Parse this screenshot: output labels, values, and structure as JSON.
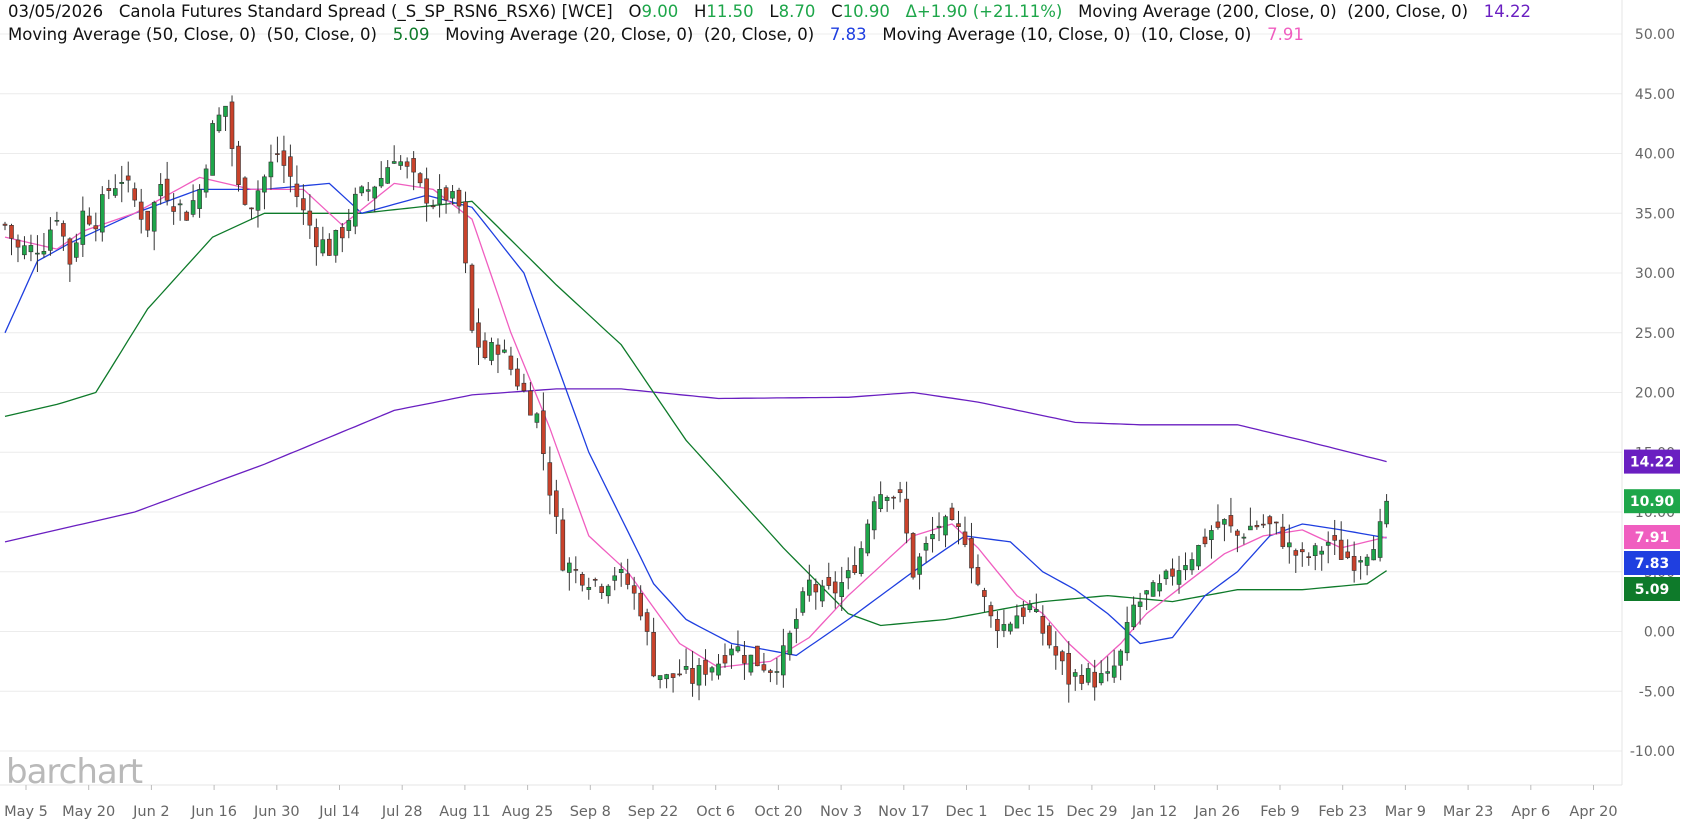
{
  "header": {
    "date": "03/05/2026",
    "symbol_title": "Canola Futures Standard Spread (_S_SP_RSN6_RSX6) [WCE]",
    "open_label": "O",
    "open": "9.00",
    "high_label": "H",
    "high": "11.50",
    "low_label": "L",
    "low": "8.70",
    "close_label": "C",
    "close": "10.90",
    "change": "Δ+1.90 (+21.11%)",
    "ma200_label": "Moving Average (200, Close, 0)  (200, Close, 0)",
    "ma200_value": "14.22",
    "ma50_label": "Moving Average (50, Close, 0)  (50, Close, 0)",
    "ma50_value": "5.09",
    "ma20_label": "Moving Average (20, Close, 0)  (20, Close, 0)",
    "ma20_value": "7.83",
    "ma10_label": "Moving Average (10, Close, 0)  (10, Close, 0)",
    "ma10_value": "7.91"
  },
  "watermark": "barchart",
  "colors": {
    "up": "#1ea64a",
    "down": "#c9422b",
    "wick": "#333333",
    "ma200": "#6a1fc1",
    "ma50": "#0e7a2a",
    "ma20": "#1f3fe0",
    "ma10": "#f05ec0",
    "grid": "#ececec",
    "label_text": "#666666",
    "header_up": "#1ea64a"
  },
  "chart_data": {
    "type": "candlestick",
    "ylim": [
      -10,
      50
    ],
    "yticks": [
      "50.00",
      "45.00",
      "40.00",
      "35.00",
      "30.00",
      "25.00",
      "20.00",
      "15.00",
      "10.00",
      "5.00",
      "0.00",
      "-5.00",
      "-10.00"
    ],
    "ytick_values": [
      50,
      45,
      40,
      35,
      30,
      25,
      20,
      15,
      10,
      5,
      0,
      -5,
      -10
    ],
    "xticks": [
      "May 5",
      "May 20",
      "Jun 2",
      "Jun 16",
      "Jun 30",
      "Jul 14",
      "Jul 28",
      "Aug 11",
      "Aug 25",
      "Sep 8",
      "Sep 22",
      "Oct 6",
      "Oct 20",
      "Nov 3",
      "Nov 17",
      "Dec 1",
      "Dec 15",
      "Dec 29",
      "Jan 12",
      "Jan 26",
      "Feb 9",
      "Feb 23",
      "Mar 9",
      "Mar 23",
      "Apr 6",
      "Apr 20"
    ],
    "last_bar_tick_index": 21.7,
    "price_tags": [
      {
        "name": "ma200",
        "value": 14.22,
        "text": "14.22"
      },
      {
        "name": "close",
        "value": 10.9,
        "text": "10.90"
      },
      {
        "name": "ma10",
        "value": 7.91,
        "text": "7.91"
      },
      {
        "name": "ma20",
        "value": 7.83,
        "text": "7.83"
      },
      {
        "name": "ma50",
        "value": 5.09,
        "text": "5.09"
      }
    ],
    "close_anchors": [
      [
        0,
        34
      ],
      [
        2,
        32
      ],
      [
        4,
        32
      ],
      [
        6,
        32.5
      ],
      [
        8,
        35
      ],
      [
        10,
        31
      ],
      [
        12,
        35
      ],
      [
        14,
        34.5
      ],
      [
        16,
        37
      ],
      [
        18,
        38
      ],
      [
        20,
        36
      ],
      [
        22,
        34
      ],
      [
        24,
        37.5
      ],
      [
        26,
        36
      ],
      [
        28,
        35
      ],
      [
        30,
        37
      ],
      [
        32,
        42
      ],
      [
        34,
        44
      ],
      [
        36,
        37
      ],
      [
        38,
        36
      ],
      [
        40,
        38
      ],
      [
        42,
        40
      ],
      [
        44,
        38
      ],
      [
        46,
        35
      ],
      [
        48,
        33
      ],
      [
        50,
        32
      ],
      [
        52,
        33.5
      ],
      [
        54,
        36
      ],
      [
        56,
        37
      ],
      [
        58,
        38
      ],
      [
        60,
        40
      ],
      [
        62,
        38.5
      ],
      [
        64,
        37
      ],
      [
        66,
        36
      ],
      [
        68,
        36.5
      ],
      [
        70,
        35.5
      ],
      [
        72,
        25
      ],
      [
        74,
        23
      ],
      [
        76,
        24
      ],
      [
        78,
        22
      ],
      [
        80,
        20
      ],
      [
        82,
        18
      ],
      [
        84,
        12
      ],
      [
        86,
        6
      ],
      [
        88,
        5
      ],
      [
        90,
        4.5
      ],
      [
        92,
        4
      ],
      [
        94,
        5
      ],
      [
        96,
        4
      ],
      [
        98,
        2
      ],
      [
        100,
        -3
      ],
      [
        102,
        -4
      ],
      [
        104,
        -3.5
      ],
      [
        106,
        -4
      ],
      [
        108,
        -3
      ],
      [
        110,
        -2.5
      ],
      [
        112,
        -1
      ],
      [
        114,
        -2
      ],
      [
        116,
        -2.5
      ],
      [
        118,
        -3
      ],
      [
        120,
        -2
      ],
      [
        122,
        1
      ],
      [
        124,
        4
      ],
      [
        126,
        3
      ],
      [
        128,
        3.5
      ],
      [
        130,
        4.5
      ],
      [
        132,
        7
      ],
      [
        134,
        11.5
      ],
      [
        136,
        12
      ],
      [
        138,
        11
      ],
      [
        140,
        5
      ],
      [
        142,
        7
      ],
      [
        144,
        9
      ],
      [
        146,
        8.5
      ],
      [
        148,
        8
      ],
      [
        150,
        4
      ],
      [
        152,
        1
      ],
      [
        154,
        0.5
      ],
      [
        156,
        1.5
      ],
      [
        158,
        2
      ],
      [
        160,
        0
      ],
      [
        162,
        -2
      ],
      [
        164,
        -4
      ],
      [
        166,
        -3.5
      ],
      [
        168,
        -4
      ],
      [
        170,
        -4
      ],
      [
        172,
        -2
      ],
      [
        174,
        2
      ],
      [
        176,
        3
      ],
      [
        178,
        3.5
      ],
      [
        180,
        5
      ],
      [
        182,
        6
      ],
      [
        184,
        7
      ],
      [
        186,
        8.5
      ],
      [
        188,
        9
      ],
      [
        190,
        8
      ],
      [
        192,
        8.8
      ],
      [
        194,
        9
      ],
      [
        196,
        8.5
      ],
      [
        198,
        7
      ],
      [
        200,
        6
      ],
      [
        202,
        6.5
      ],
      [
        204,
        7.5
      ],
      [
        206,
        6.5
      ],
      [
        208,
        6
      ],
      [
        210,
        7
      ],
      [
        212,
        8.5
      ],
      [
        213,
        10.9
      ]
    ],
    "ma_anchors": {
      "ma200": [
        [
          0,
          7.5
        ],
        [
          20,
          10
        ],
        [
          40,
          14
        ],
        [
          60,
          18.5
        ],
        [
          72,
          19.8
        ],
        [
          85,
          20.3
        ],
        [
          95,
          20.3
        ],
        [
          110,
          19.5
        ],
        [
          130,
          19.6
        ],
        [
          140,
          20
        ],
        [
          150,
          19.2
        ],
        [
          165,
          17.5
        ],
        [
          175,
          17.3
        ],
        [
          190,
          17.3
        ],
        [
          200,
          16
        ],
        [
          213,
          14.22
        ]
      ],
      "ma50": [
        [
          0,
          18
        ],
        [
          8,
          19
        ],
        [
          14,
          20
        ],
        [
          22,
          27
        ],
        [
          32,
          33
        ],
        [
          40,
          35
        ],
        [
          55,
          35
        ],
        [
          72,
          36
        ],
        [
          85,
          29
        ],
        [
          95,
          24
        ],
        [
          105,
          16
        ],
        [
          120,
          7
        ],
        [
          130,
          1.5
        ],
        [
          135,
          0.5
        ],
        [
          145,
          1
        ],
        [
          160,
          2.5
        ],
        [
          170,
          3
        ],
        [
          180,
          2.5
        ],
        [
          190,
          3.5
        ],
        [
          200,
          3.5
        ],
        [
          210,
          4
        ],
        [
          213,
          5.09
        ]
      ],
      "ma20": [
        [
          0,
          25
        ],
        [
          5,
          31
        ],
        [
          10,
          32.5
        ],
        [
          20,
          35
        ],
        [
          30,
          37
        ],
        [
          40,
          37
        ],
        [
          50,
          37.5
        ],
        [
          55,
          35
        ],
        [
          65,
          36.5
        ],
        [
          72,
          35.5
        ],
        [
          80,
          30
        ],
        [
          90,
          15
        ],
        [
          100,
          4
        ],
        [
          105,
          1
        ],
        [
          112,
          -1
        ],
        [
          122,
          -2
        ],
        [
          130,
          1
        ],
        [
          140,
          5
        ],
        [
          148,
          8
        ],
        [
          155,
          7.5
        ],
        [
          160,
          5
        ],
        [
          165,
          3.5
        ],
        [
          170,
          1.5
        ],
        [
          175,
          -1
        ],
        [
          180,
          -0.5
        ],
        [
          185,
          3
        ],
        [
          190,
          5
        ],
        [
          195,
          8
        ],
        [
          200,
          9
        ],
        [
          206,
          8.5
        ],
        [
          213,
          7.83
        ]
      ],
      "ma10": [
        [
          0,
          33
        ],
        [
          8,
          32
        ],
        [
          12,
          33.5
        ],
        [
          20,
          35
        ],
        [
          30,
          38
        ],
        [
          38,
          37
        ],
        [
          46,
          37
        ],
        [
          52,
          34
        ],
        [
          60,
          37.5
        ],
        [
          66,
          37
        ],
        [
          72,
          34.5
        ],
        [
          78,
          25
        ],
        [
          84,
          17
        ],
        [
          90,
          8
        ],
        [
          96,
          5
        ],
        [
          100,
          2
        ],
        [
          104,
          -1
        ],
        [
          110,
          -3
        ],
        [
          118,
          -2.5
        ],
        [
          124,
          -0.5
        ],
        [
          130,
          3
        ],
        [
          136,
          6
        ],
        [
          140,
          8
        ],
        [
          146,
          9
        ],
        [
          150,
          7
        ],
        [
          156,
          3
        ],
        [
          160,
          1.5
        ],
        [
          164,
          -1
        ],
        [
          168,
          -3
        ],
        [
          172,
          -1
        ],
        [
          176,
          1.5
        ],
        [
          182,
          4
        ],
        [
          188,
          6.5
        ],
        [
          194,
          8
        ],
        [
          200,
          8.5
        ],
        [
          206,
          7
        ],
        [
          213,
          7.91
        ]
      ]
    }
  }
}
